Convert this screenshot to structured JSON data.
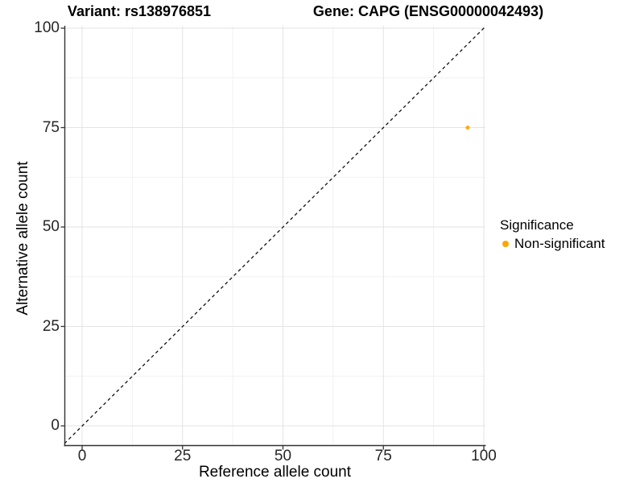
{
  "chart_data": {
    "type": "scatter",
    "titles": {
      "left": "Variant: rs138976851",
      "right": "Gene: CAPG (ENSG00000042493)"
    },
    "xlabel": "Reference allele count",
    "ylabel": "Alternative allele count",
    "xlim": [
      0,
      100
    ],
    "ylim": [
      0,
      100
    ],
    "xticks": [
      0,
      25,
      50,
      75,
      100
    ],
    "yticks": [
      0,
      25,
      50,
      75,
      100
    ],
    "xticks_minor": [
      12.5,
      37.5,
      62.5,
      87.5
    ],
    "yticks_minor": [
      12.5,
      37.5,
      62.5,
      87.5
    ],
    "grid": "major+minor",
    "reference_line": {
      "type": "identity",
      "slope": 1,
      "intercept": 0,
      "style": "dashed",
      "color": "#111111"
    },
    "points": [
      {
        "x": 96,
        "y": 75,
        "series": "Non-significant",
        "color": "#FFA500"
      }
    ],
    "legend": {
      "title": "Significance",
      "position": "right",
      "items": [
        {
          "label": "Non-significant",
          "color": "#FFA500"
        }
      ]
    }
  },
  "colors": {
    "accent_orange": "#FFA500",
    "grid_major": "#E3E3E3",
    "grid_minor": "#F1F1F1",
    "axis_line": "#333333",
    "tick_text": "#262626"
  }
}
